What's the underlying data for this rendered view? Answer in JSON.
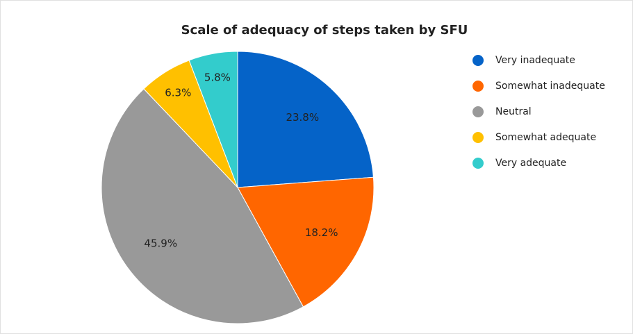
{
  "chart_data": {
    "type": "pie",
    "title": "Scale of adequacy of steps taken by SFU",
    "categories": [
      "Very inadequate",
      "Somewhat inadequate",
      "Neutral",
      "Somewhat adequate",
      "Very adequate"
    ],
    "values": [
      23.8,
      18.2,
      45.9,
      6.3,
      5.8
    ],
    "value_labels": [
      "23.8%",
      "18.2%",
      "45.9%",
      "6.3%",
      "5.8%"
    ],
    "colors": [
      "#0563c8",
      "#ff6600",
      "#999999",
      "#ffc000",
      "#33cccc"
    ],
    "legend": "right"
  }
}
